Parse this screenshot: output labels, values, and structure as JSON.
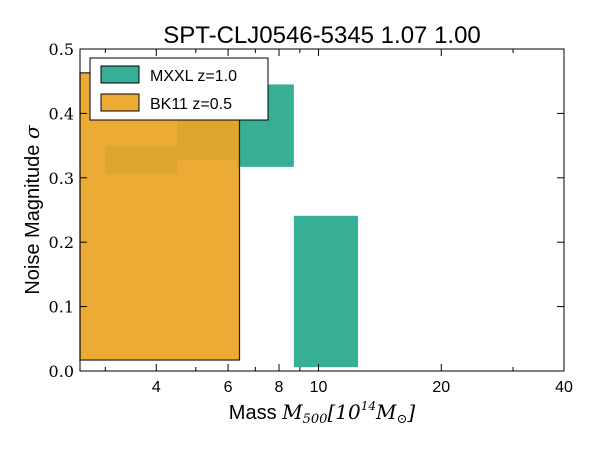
{
  "chart_data": {
    "type": "area",
    "title": "SPT-CLJ0546-5345 1.07 1.00",
    "xlabel": {
      "prefix": "Mass ",
      "symbol": "M",
      "subscript": "500",
      "bracket_open": "[10",
      "exponent": "14",
      "mass_symbol": "M",
      "mass_subscript": "⊙",
      "bracket_close": "]"
    },
    "ylabel": {
      "prefix": "Noise Magnitude ",
      "symbol": "σ"
    },
    "x_scale": "log",
    "xlim": [
      2.6,
      40
    ],
    "ylim": [
      0.0,
      0.5
    ],
    "x_ticks": [
      {
        "value": 4,
        "label": "4"
      },
      {
        "value": 6,
        "label": "6"
      },
      {
        "value": 8,
        "label": "8"
      },
      {
        "value": 10,
        "label": "10"
      },
      {
        "value": 20,
        "label": "20"
      },
      {
        "value": 40,
        "label": "40"
      }
    ],
    "x_minor_ticks": [
      3,
      5,
      7,
      9,
      30
    ],
    "y_ticks": [
      {
        "value": 0.0,
        "label": "0.0"
      },
      {
        "value": 0.1,
        "label": "0.1"
      },
      {
        "value": 0.2,
        "label": "0.2"
      },
      {
        "value": 0.3,
        "label": "0.3"
      },
      {
        "value": 0.4,
        "label": "0.4"
      },
      {
        "value": 0.5,
        "label": "0.5"
      }
    ],
    "legend_position": "top-left",
    "series": [
      {
        "name": "MXXL z=1.0",
        "color": "#20a68b",
        "opacity": 0.9,
        "bins": [
          {
            "x0": 3.0,
            "x1": 4.5,
            "low": 0.306,
            "high": 0.349
          },
          {
            "x0": 4.5,
            "x1": 6.3,
            "low": 0.328,
            "high": 0.406
          },
          {
            "x0": 6.3,
            "x1": 8.7,
            "low": 0.317,
            "high": 0.445
          },
          {
            "x0": 8.7,
            "x1": 12.5,
            "low": 0.006,
            "high": 0.241
          }
        ]
      },
      {
        "name": "BK11 z=0.5",
        "color": "#e9a525",
        "opacity": 0.93,
        "bins": [
          {
            "x0": 2.6,
            "x1": 6.4,
            "low": 0.017,
            "high": 0.463
          }
        ]
      }
    ]
  }
}
